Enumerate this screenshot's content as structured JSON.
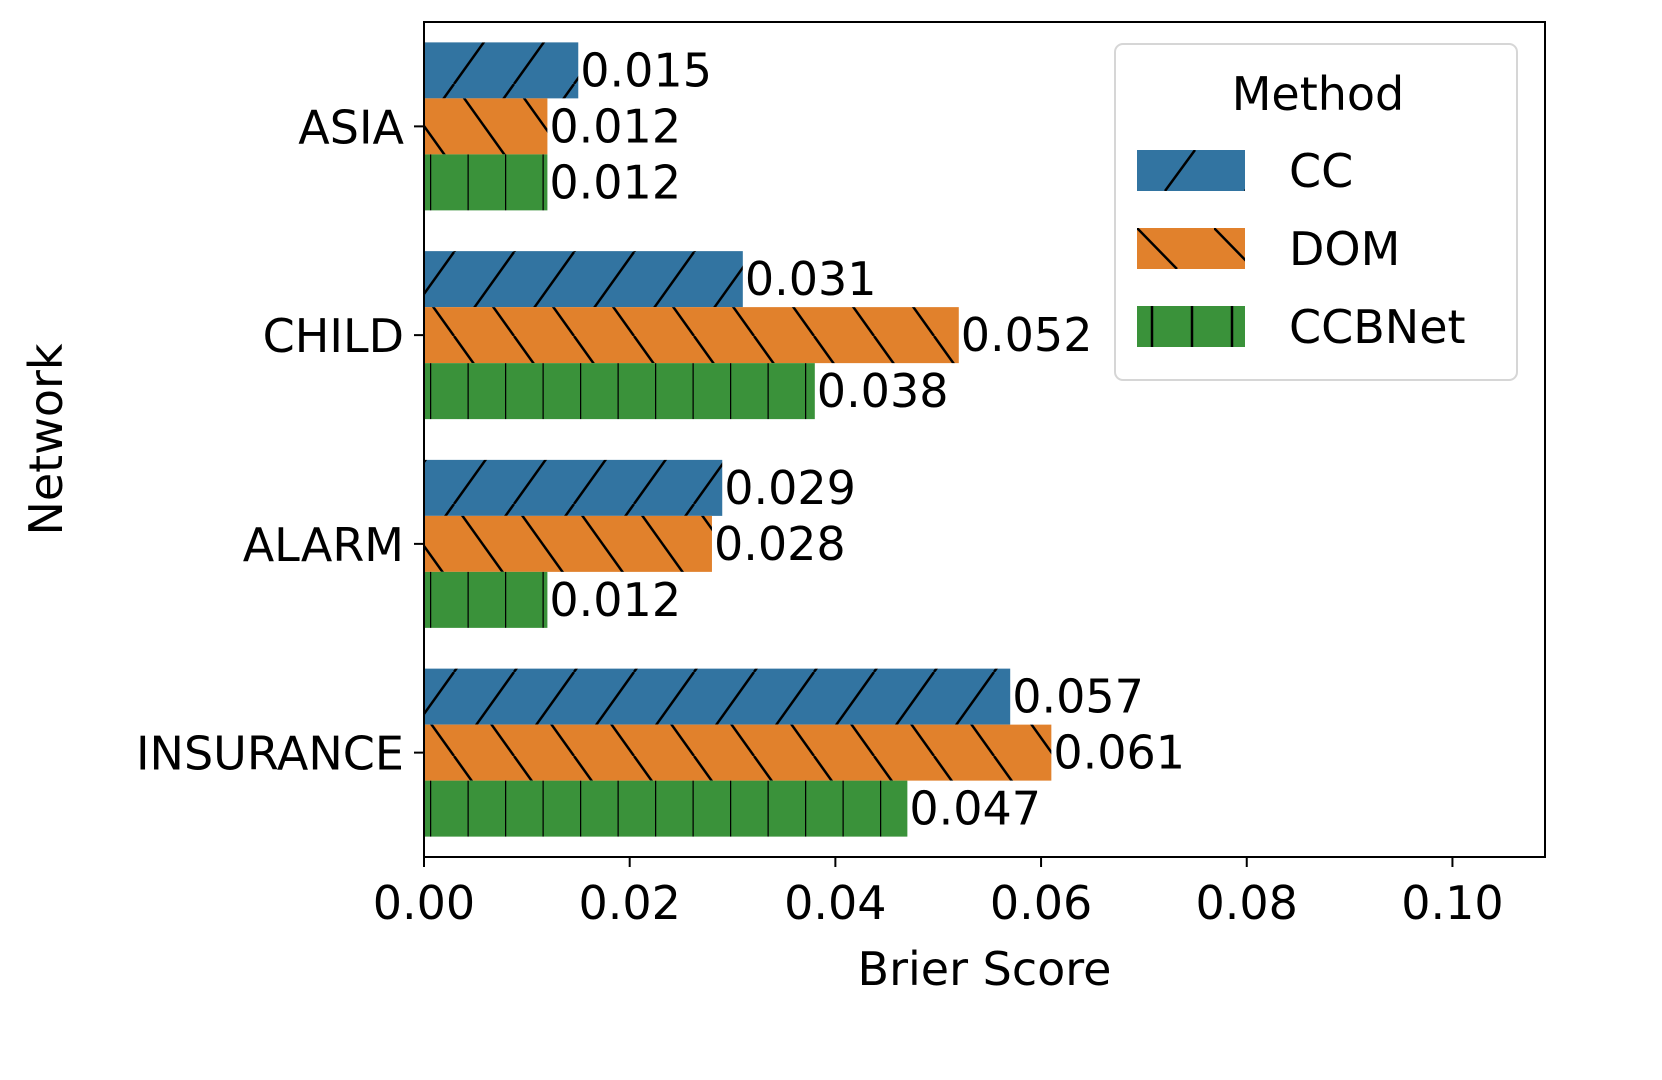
{
  "chart_data": {
    "type": "bar",
    "orientation": "horizontal",
    "title": "",
    "xlabel": "Brier Score",
    "ylabel": "Network",
    "xlim": [
      0,
      0.109
    ],
    "xticks": [
      0.0,
      0.02,
      0.04,
      0.06,
      0.08,
      0.1
    ],
    "xtick_labels": [
      "0.00",
      "0.02",
      "0.04",
      "0.06",
      "0.08",
      "0.10"
    ],
    "categories": [
      "ASIA",
      "CHILD",
      "ALARM",
      "INSURANCE"
    ],
    "series": [
      {
        "name": "CC",
        "color": "#3274a1",
        "hatch": "/",
        "values": [
          0.015,
          0.031,
          0.029,
          0.057
        ],
        "labels": [
          "0.015",
          "0.031",
          "0.029",
          "0.057"
        ]
      },
      {
        "name": "DOM",
        "color": "#e1812c",
        "hatch": "\\",
        "values": [
          0.012,
          0.052,
          0.028,
          0.061
        ],
        "labels": [
          "0.012",
          "0.052",
          "0.028",
          "0.061"
        ]
      },
      {
        "name": "CCBNet",
        "color": "#3a923a",
        "hatch": "|",
        "values": [
          0.012,
          0.038,
          0.012,
          0.047
        ],
        "labels": [
          "0.012",
          "0.038",
          "0.012",
          "0.047"
        ]
      }
    ],
    "legend": {
      "title": "Method",
      "placement": "top-right"
    },
    "grid": false
  }
}
